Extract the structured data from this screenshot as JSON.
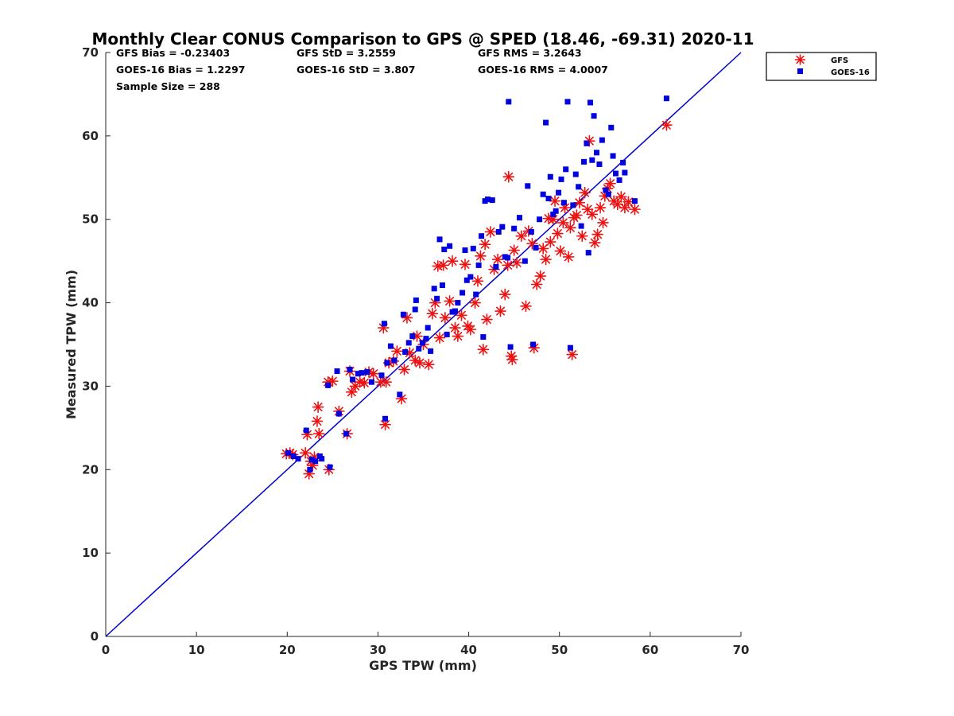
{
  "chart_data": {
    "type": "scatter",
    "title": "Monthly Clear CONUS Comparison to GPS @ SPED (18.46, -69.31) 2020-11",
    "xlabel": "GPS TPW (mm)",
    "ylabel": "Measured TPW (mm)",
    "xlim": [
      0,
      70
    ],
    "ylim": [
      0,
      70
    ],
    "xticks": [
      0,
      10,
      20,
      30,
      40,
      50,
      60,
      70
    ],
    "yticks": [
      0,
      10,
      20,
      30,
      40,
      50,
      60,
      70
    ],
    "stats": {
      "gfs_bias": "GFS Bias = -0.23403",
      "gfs_std": "GFS StD = 3.2559",
      "gfs_rms": "GFS RMS = 3.2643",
      "goes_bias": "GOES-16 Bias = 1.2297",
      "goes_std": "GOES-16 StD = 3.807",
      "goes_rms": "GOES-16 RMS = 4.0007",
      "sample_size": "Sample Size = 288"
    },
    "legend_position": "outside top-right",
    "reference_line": {
      "x": [
        0,
        70
      ],
      "y": [
        0,
        70
      ],
      "color": "#0000d0"
    },
    "series": [
      {
        "name": "GFS",
        "marker": "asterisk",
        "color": "#ee1111",
        "points": [
          [
            19.9,
            21.9
          ],
          [
            20.3,
            22.0
          ],
          [
            20.6,
            21.8
          ],
          [
            22.0,
            22.0
          ],
          [
            22.2,
            24.2
          ],
          [
            22.4,
            19.5
          ],
          [
            22.6,
            21.0
          ],
          [
            22.8,
            20.5
          ],
          [
            23.0,
            21.5
          ],
          [
            23.3,
            25.8
          ],
          [
            23.4,
            27.5
          ],
          [
            23.5,
            24.3
          ],
          [
            24.5,
            30.5
          ],
          [
            24.6,
            20.0
          ],
          [
            25.0,
            30.6
          ],
          [
            25.7,
            27.0
          ],
          [
            26.6,
            24.3
          ],
          [
            26.9,
            31.8
          ],
          [
            27.1,
            29.3
          ],
          [
            27.5,
            30.0
          ],
          [
            28.0,
            30.5
          ],
          [
            28.5,
            30.4
          ],
          [
            29.0,
            31.7
          ],
          [
            29.5,
            31.5
          ],
          [
            30.3,
            30.5
          ],
          [
            30.6,
            37.0
          ],
          [
            30.8,
            25.4
          ],
          [
            30.9,
            30.5
          ],
          [
            31.2,
            32.8
          ],
          [
            31.7,
            33.0
          ],
          [
            32.1,
            34.2
          ],
          [
            32.6,
            28.5
          ],
          [
            32.9,
            32.0
          ],
          [
            33.2,
            38.2
          ],
          [
            33.5,
            34.0
          ],
          [
            34.1,
            33.1
          ],
          [
            34.3,
            36.0
          ],
          [
            34.6,
            32.8
          ],
          [
            35.0,
            35.0
          ],
          [
            35.6,
            32.6
          ],
          [
            36.0,
            38.7
          ],
          [
            36.3,
            40.0
          ],
          [
            36.6,
            44.4
          ],
          [
            36.8,
            35.8
          ],
          [
            37.2,
            44.5
          ],
          [
            37.4,
            38.2
          ],
          [
            37.9,
            40.2
          ],
          [
            38.2,
            45.0
          ],
          [
            38.5,
            37.0
          ],
          [
            38.8,
            36.0
          ],
          [
            39.2,
            38.5
          ],
          [
            39.6,
            44.6
          ],
          [
            39.9,
            37.2
          ],
          [
            40.2,
            36.8
          ],
          [
            40.7,
            40.0
          ],
          [
            41.0,
            42.6
          ],
          [
            41.3,
            45.6
          ],
          [
            41.6,
            34.4
          ],
          [
            41.8,
            47.0
          ],
          [
            42.0,
            38.0
          ],
          [
            42.4,
            48.5
          ],
          [
            42.8,
            44.0
          ],
          [
            43.2,
            45.2
          ],
          [
            43.5,
            39.0
          ],
          [
            44.0,
            41.0
          ],
          [
            44.3,
            44.5
          ],
          [
            44.4,
            55.1
          ],
          [
            44.7,
            33.6
          ],
          [
            44.8,
            33.2
          ],
          [
            45.0,
            46.3
          ],
          [
            45.3,
            44.8
          ],
          [
            45.8,
            48.0
          ],
          [
            46.3,
            39.6
          ],
          [
            46.6,
            48.6
          ],
          [
            47.0,
            47.1
          ],
          [
            47.2,
            34.6
          ],
          [
            47.5,
            42.2
          ],
          [
            47.9,
            43.2
          ],
          [
            48.2,
            46.5
          ],
          [
            48.5,
            45.2
          ],
          [
            48.8,
            50.1
          ],
          [
            49.0,
            47.3
          ],
          [
            49.3,
            50.0
          ],
          [
            49.5,
            52.2
          ],
          [
            49.8,
            48.3
          ],
          [
            50.1,
            46.2
          ],
          [
            50.4,
            49.6
          ],
          [
            50.6,
            51.4
          ],
          [
            51.0,
            45.5
          ],
          [
            51.2,
            49.0
          ],
          [
            51.4,
            33.8
          ],
          [
            51.6,
            50.2
          ],
          [
            51.9,
            50.5
          ],
          [
            52.2,
            52.0
          ],
          [
            52.5,
            48.0
          ],
          [
            52.8,
            53.2
          ],
          [
            53.1,
            51.2
          ],
          [
            53.3,
            59.4
          ],
          [
            53.6,
            50.6
          ],
          [
            53.9,
            47.2
          ],
          [
            54.2,
            48.2
          ],
          [
            54.5,
            51.4
          ],
          [
            54.8,
            49.6
          ],
          [
            55.0,
            52.8
          ],
          [
            55.3,
            53.7
          ],
          [
            55.6,
            54.3
          ],
          [
            56.0,
            52.2
          ],
          [
            56.4,
            51.8
          ],
          [
            56.8,
            52.7
          ],
          [
            57.2,
            51.4
          ],
          [
            57.6,
            52.1
          ],
          [
            58.3,
            51.2
          ],
          [
            61.8,
            61.3
          ]
        ]
      },
      {
        "name": "GOES-16",
        "marker": "square",
        "color": "#0000e0",
        "points": [
          [
            20.1,
            22.0
          ],
          [
            20.7,
            21.6
          ],
          [
            21.2,
            21.3
          ],
          [
            22.1,
            24.7
          ],
          [
            22.5,
            20.0
          ],
          [
            22.7,
            21.2
          ],
          [
            23.1,
            21.0
          ],
          [
            23.6,
            21.6
          ],
          [
            23.8,
            21.3
          ],
          [
            24.5,
            30.1
          ],
          [
            24.7,
            20.3
          ],
          [
            25.5,
            31.8
          ],
          [
            25.7,
            26.7
          ],
          [
            26.5,
            24.3
          ],
          [
            26.9,
            32.0
          ],
          [
            27.2,
            30.8
          ],
          [
            27.8,
            31.5
          ],
          [
            28.2,
            31.6
          ],
          [
            28.8,
            31.7
          ],
          [
            29.3,
            30.5
          ],
          [
            30.4,
            31.3
          ],
          [
            30.7,
            37.5
          ],
          [
            30.8,
            26.1
          ],
          [
            31.0,
            32.8
          ],
          [
            31.4,
            34.8
          ],
          [
            31.8,
            33.1
          ],
          [
            32.4,
            29.0
          ],
          [
            32.8,
            38.6
          ],
          [
            33.0,
            34.1
          ],
          [
            33.4,
            35.2
          ],
          [
            33.8,
            36.0
          ],
          [
            34.1,
            39.2
          ],
          [
            34.2,
            40.3
          ],
          [
            34.5,
            34.5
          ],
          [
            34.9,
            35.2
          ],
          [
            35.3,
            35.7
          ],
          [
            35.5,
            37.0
          ],
          [
            35.8,
            34.2
          ],
          [
            36.2,
            41.7
          ],
          [
            36.5,
            40.5
          ],
          [
            36.8,
            47.6
          ],
          [
            37.1,
            42.1
          ],
          [
            37.3,
            46.4
          ],
          [
            37.6,
            36.2
          ],
          [
            37.9,
            46.8
          ],
          [
            38.2,
            38.9
          ],
          [
            38.5,
            39.0
          ],
          [
            38.8,
            40.0
          ],
          [
            39.3,
            41.2
          ],
          [
            39.6,
            46.3
          ],
          [
            39.8,
            42.7
          ],
          [
            40.2,
            43.1
          ],
          [
            40.5,
            46.5
          ],
          [
            40.8,
            41.0
          ],
          [
            41.1,
            44.5
          ],
          [
            41.4,
            48.0
          ],
          [
            41.6,
            35.9
          ],
          [
            41.8,
            52.2
          ],
          [
            42.1,
            52.4
          ],
          [
            42.6,
            52.3
          ],
          [
            43.0,
            44.3
          ],
          [
            43.3,
            48.5
          ],
          [
            43.7,
            49.1
          ],
          [
            44.0,
            45.5
          ],
          [
            44.3,
            45.4
          ],
          [
            44.4,
            64.1
          ],
          [
            44.6,
            34.7
          ],
          [
            45.0,
            48.9
          ],
          [
            45.6,
            50.2
          ],
          [
            46.2,
            45.0
          ],
          [
            46.5,
            54.0
          ],
          [
            46.9,
            48.5
          ],
          [
            47.1,
            35.0
          ],
          [
            47.4,
            46.6
          ],
          [
            47.8,
            50.0
          ],
          [
            48.2,
            53.0
          ],
          [
            48.5,
            61.6
          ],
          [
            48.8,
            52.5
          ],
          [
            49.0,
            55.1
          ],
          [
            49.3,
            50.6
          ],
          [
            49.6,
            51.0
          ],
          [
            49.9,
            53.2
          ],
          [
            50.2,
            54.8
          ],
          [
            50.5,
            52.0
          ],
          [
            50.7,
            56.0
          ],
          [
            50.9,
            64.1
          ],
          [
            51.2,
            34.6
          ],
          [
            51.5,
            51.7
          ],
          [
            51.8,
            55.4
          ],
          [
            52.1,
            53.9
          ],
          [
            52.4,
            49.2
          ],
          [
            52.7,
            56.9
          ],
          [
            53.0,
            59.1
          ],
          [
            53.2,
            46.0
          ],
          [
            53.4,
            64.0
          ],
          [
            53.6,
            57.1
          ],
          [
            53.8,
            62.4
          ],
          [
            54.1,
            58.0
          ],
          [
            54.4,
            56.6
          ],
          [
            54.7,
            59.5
          ],
          [
            55.1,
            53.5
          ],
          [
            55.4,
            53.0
          ],
          [
            55.7,
            61.0
          ],
          [
            55.9,
            57.6
          ],
          [
            56.2,
            55.5
          ],
          [
            56.6,
            54.7
          ],
          [
            57.0,
            56.8
          ],
          [
            57.2,
            55.6
          ],
          [
            58.3,
            52.2
          ],
          [
            61.8,
            64.5
          ]
        ]
      }
    ]
  }
}
